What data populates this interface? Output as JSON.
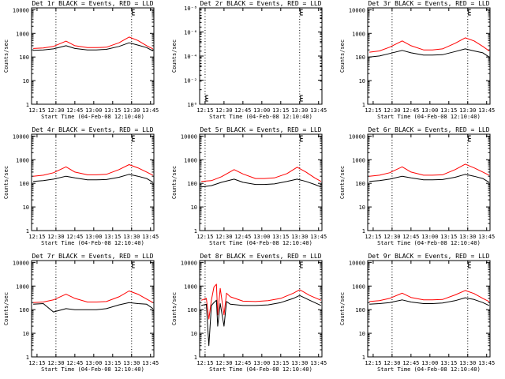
{
  "chart_data": [
    {
      "type": "line",
      "title": "Det 1r BLACK = Events, RED = LLD",
      "xlabel": "Start Time (04-Feb-08 12:10:40)",
      "ylabel": "Counts/sec",
      "x_ticks": [
        "12:15",
        "12:30",
        "12:45",
        "13:00",
        "13:15",
        "13:30",
        "13:45"
      ],
      "y_ticks": [
        "1",
        "10",
        "100",
        "1000",
        "10000"
      ],
      "ylim": [
        1,
        12000
      ],
      "y_scale": "log",
      "markers": [
        "12:30",
        "13:30"
      ],
      "series": [
        {
          "color": "#ff0000",
          "x": [
            "12:12",
            "12:20",
            "12:28",
            "12:38",
            "12:45",
            "12:55",
            "13:02",
            "13:10",
            "13:20",
            "13:28",
            "13:35",
            "13:42",
            "13:47"
          ],
          "y": [
            230,
            240,
            280,
            470,
            300,
            250,
            250,
            260,
            400,
            700,
            500,
            300,
            220
          ]
        },
        {
          "color": "#000000",
          "x": [
            "12:12",
            "12:20",
            "12:28",
            "12:38",
            "12:45",
            "12:55",
            "13:02",
            "13:10",
            "13:20",
            "13:28",
            "13:35",
            "13:42",
            "13:47"
          ],
          "y": [
            190,
            200,
            220,
            300,
            230,
            200,
            200,
            210,
            280,
            400,
            320,
            250,
            180
          ]
        }
      ]
    },
    {
      "type": "line",
      "title": "Det 2r BLACK = Events, RED = LLD",
      "xlabel": "Start Time (04-Feb-08 12:10:40)",
      "ylabel": "Counts/sec",
      "x_ticks": [
        "12:15",
        "12:30",
        "12:45",
        "13:00",
        "13:15",
        "13:30",
        "13:45"
      ],
      "y_ticks": [
        "10⁰",
        "10⁻²",
        "10⁻⁴",
        "10⁻⁶",
        "10⁻⁸"
      ],
      "ylim": [
        1,
        1e-08
      ],
      "y_scale": "log",
      "markers": [
        "12:15",
        "13:30"
      ],
      "series": []
    },
    {
      "type": "line",
      "title": "Det 3r BLACK = Events, RED = LLD",
      "xlabel": "Start Time (04-Feb-08 12:10:40)",
      "ylabel": "Counts/sec",
      "x_ticks": [
        "12:15",
        "12:30",
        "12:45",
        "13:00",
        "13:15",
        "13:30",
        "13:45"
      ],
      "y_ticks": [
        "1",
        "10",
        "100",
        "1000",
        "10000"
      ],
      "ylim": [
        1,
        12000
      ],
      "y_scale": "log",
      "markers": [
        "12:30",
        "13:30"
      ],
      "series": [
        {
          "color": "#ff0000",
          "x": [
            "12:12",
            "12:20",
            "12:28",
            "12:38",
            "12:45",
            "12:55",
            "13:02",
            "13:10",
            "13:20",
            "13:28",
            "13:35",
            "13:42",
            "13:47"
          ],
          "y": [
            160,
            180,
            260,
            480,
            300,
            200,
            200,
            220,
            380,
            650,
            480,
            280,
            180
          ]
        },
        {
          "color": "#000000",
          "x": [
            "12:12",
            "12:20",
            "12:28",
            "12:38",
            "12:45",
            "12:55",
            "13:02",
            "13:10",
            "13:20",
            "13:28",
            "13:35",
            "13:42",
            "13:47"
          ],
          "y": [
            100,
            110,
            140,
            190,
            150,
            120,
            120,
            125,
            170,
            220,
            180,
            150,
            100
          ]
        }
      ]
    },
    {
      "type": "line",
      "title": "Det 4r BLACK = Events, RED = LLD",
      "xlabel": "Start Time (04-Feb-08 12:10:40)",
      "ylabel": "Counts/sec",
      "x_ticks": [
        "12:15",
        "12:30",
        "12:45",
        "13:00",
        "13:15",
        "13:30",
        "13:45"
      ],
      "y_ticks": [
        "1",
        "10",
        "100",
        "1000",
        "10000"
      ],
      "ylim": [
        1,
        12000
      ],
      "y_scale": "log",
      "markers": [
        "12:30",
        "13:30"
      ],
      "series": [
        {
          "color": "#ff0000",
          "x": [
            "12:12",
            "12:20",
            "12:28",
            "12:38",
            "12:45",
            "12:55",
            "13:02",
            "13:10",
            "13:20",
            "13:28",
            "13:35",
            "13:42",
            "13:47"
          ],
          "y": [
            200,
            220,
            280,
            500,
            300,
            230,
            230,
            240,
            380,
            620,
            450,
            300,
            220
          ]
        },
        {
          "color": "#000000",
          "x": [
            "12:12",
            "12:20",
            "12:28",
            "12:38",
            "12:45",
            "12:55",
            "13:02",
            "13:10",
            "13:20",
            "13:28",
            "13:35",
            "13:42",
            "13:47"
          ],
          "y": [
            120,
            130,
            150,
            200,
            170,
            140,
            140,
            145,
            180,
            240,
            200,
            160,
            110
          ]
        }
      ]
    },
    {
      "type": "line",
      "title": "Det 5r BLACK = Events, RED = LLD",
      "xlabel": "Start Time (04-Feb-08 12:10:40)",
      "ylabel": "Counts/sec",
      "x_ticks": [
        "12:15",
        "12:30",
        "12:45",
        "13:00",
        "13:15",
        "13:30",
        "13:45"
      ],
      "y_ticks": [
        "1",
        "10",
        "100",
        "1000",
        "10000"
      ],
      "ylim": [
        1,
        12000
      ],
      "y_scale": "log",
      "markers": [
        "12:15",
        "13:30"
      ],
      "series": [
        {
          "color": "#ff0000",
          "x": [
            "12:12",
            "12:20",
            "12:28",
            "12:38",
            "12:45",
            "12:55",
            "13:02",
            "13:10",
            "13:20",
            "13:28",
            "13:35",
            "13:42",
            "13:47"
          ],
          "y": [
            120,
            130,
            190,
            380,
            250,
            160,
            160,
            170,
            260,
            480,
            300,
            170,
            120
          ]
        },
        {
          "color": "#000000",
          "x": [
            "12:12",
            "12:20",
            "12:28",
            "12:38",
            "12:45",
            "12:55",
            "13:02",
            "13:10",
            "13:20",
            "13:28",
            "13:35",
            "13:42",
            "13:47"
          ],
          "y": [
            70,
            80,
            110,
            150,
            110,
            90,
            90,
            95,
            120,
            150,
            120,
            90,
            70
          ]
        }
      ]
    },
    {
      "type": "line",
      "title": "Det 6r BLACK = Events, RED = LLD",
      "xlabel": "Start Time (04-Feb-08 12:10:40)",
      "ylabel": "Counts/sec",
      "x_ticks": [
        "12:15",
        "12:30",
        "12:45",
        "13:00",
        "13:15",
        "13:30",
        "13:45"
      ],
      "y_ticks": [
        "1",
        "10",
        "100",
        "1000",
        "10000"
      ],
      "ylim": [
        1,
        12000
      ],
      "y_scale": "log",
      "markers": [
        "12:30",
        "13:30"
      ],
      "series": [
        {
          "color": "#ff0000",
          "x": [
            "12:12",
            "12:20",
            "12:28",
            "12:38",
            "12:45",
            "12:55",
            "13:02",
            "13:10",
            "13:20",
            "13:28",
            "13:35",
            "13:42",
            "13:47"
          ],
          "y": [
            200,
            220,
            280,
            500,
            300,
            220,
            220,
            230,
            380,
            650,
            450,
            300,
            220
          ]
        },
        {
          "color": "#000000",
          "x": [
            "12:12",
            "12:20",
            "12:28",
            "12:38",
            "12:45",
            "12:55",
            "13:02",
            "13:10",
            "13:20",
            "13:28",
            "13:35",
            "13:42",
            "13:47"
          ],
          "y": [
            120,
            130,
            150,
            200,
            170,
            140,
            140,
            145,
            180,
            240,
            200,
            160,
            110
          ]
        }
      ]
    },
    {
      "type": "line",
      "title": "Det 7r BLACK = Events, RED = LLD",
      "xlabel": "Start Time (04-Feb-08 12:10:40)",
      "ylabel": "Counts/sec",
      "x_ticks": [
        "12:15",
        "12:30",
        "12:45",
        "13:00",
        "13:15",
        "13:30",
        "13:45"
      ],
      "y_ticks": [
        "1",
        "10",
        "100",
        "1000",
        "10000"
      ],
      "ylim": [
        1,
        12000
      ],
      "y_scale": "log",
      "markers": [
        "12:30",
        "13:30"
      ],
      "series": [
        {
          "color": "#ff0000",
          "x": [
            "12:12",
            "12:20",
            "12:28",
            "12:38",
            "12:45",
            "12:55",
            "13:02",
            "13:10",
            "13:20",
            "13:28",
            "13:35",
            "13:42",
            "13:47"
          ],
          "y": [
            200,
            210,
            260,
            450,
            300,
            210,
            210,
            220,
            350,
            620,
            450,
            280,
            200
          ]
        },
        {
          "color": "#000000",
          "x": [
            "12:12",
            "12:20",
            "12:28",
            "12:38",
            "12:45",
            "12:55",
            "13:02",
            "13:10",
            "13:20",
            "13:28",
            "13:35",
            "13:42",
            "13:47"
          ],
          "y": [
            170,
            180,
            80,
            110,
            100,
            100,
            100,
            110,
            160,
            200,
            180,
            170,
            110
          ]
        }
      ]
    },
    {
      "type": "line",
      "title": "Det 8r BLACK = Events, RED = LLD",
      "xlabel": "Start Time (04-Feb-08 12:10:40)",
      "ylabel": "Counts/sec",
      "x_ticks": [
        "12:15",
        "12:30",
        "12:45",
        "13:00",
        "13:15",
        "13:30",
        "13:45"
      ],
      "y_ticks": [
        "1",
        "10",
        "100",
        "1000",
        "10000"
      ],
      "ylim": [
        1,
        12000
      ],
      "y_scale": "log",
      "markers": [
        "12:15",
        "13:30"
      ],
      "series": [
        {
          "color": "#ff0000",
          "x": [
            "12:12",
            "12:16",
            "12:18",
            "12:20",
            "12:22",
            "12:24",
            "12:25",
            "12:27",
            "12:30",
            "12:32",
            "12:35",
            "12:45",
            "12:55",
            "13:05",
            "13:15",
            "13:25",
            "13:30",
            "13:38",
            "13:47"
          ],
          "y": [
            250,
            300,
            40,
            250,
            900,
            1200,
            60,
            800,
            60,
            500,
            350,
            230,
            220,
            240,
            300,
            500,
            700,
            400,
            250
          ]
        },
        {
          "color": "#000000",
          "x": [
            "12:12",
            "12:16",
            "12:18",
            "12:20",
            "12:22",
            "12:24",
            "12:25",
            "12:27",
            "12:30",
            "12:32",
            "12:35",
            "12:45",
            "12:55",
            "13:05",
            "13:15",
            "13:25",
            "13:30",
            "13:38",
            "13:47"
          ],
          "y": [
            150,
            170,
            3,
            150,
            200,
            250,
            20,
            180,
            20,
            220,
            170,
            150,
            150,
            160,
            200,
            300,
            400,
            250,
            150
          ]
        }
      ]
    },
    {
      "type": "line",
      "title": "Det 9r BLACK = Events, RED = LLD",
      "xlabel": "Start Time (04-Feb-08 12:10:40)",
      "ylabel": "Counts/sec",
      "x_ticks": [
        "12:15",
        "12:30",
        "12:45",
        "13:00",
        "13:15",
        "13:30",
        "13:45"
      ],
      "y_ticks": [
        "1",
        "10",
        "100",
        "1000",
        "10000"
      ],
      "ylim": [
        1,
        12000
      ],
      "y_scale": "log",
      "markers": [
        "12:30",
        "13:30"
      ],
      "series": [
        {
          "color": "#ff0000",
          "x": [
            "12:12",
            "12:20",
            "12:28",
            "12:38",
            "12:45",
            "12:55",
            "13:02",
            "13:10",
            "13:20",
            "13:28",
            "13:35",
            "13:42",
            "13:47"
          ],
          "y": [
            220,
            240,
            300,
            500,
            330,
            260,
            260,
            270,
            420,
            650,
            480,
            300,
            220
          ]
        },
        {
          "color": "#000000",
          "x": [
            "12:12",
            "12:20",
            "12:28",
            "12:38",
            "12:45",
            "12:55",
            "13:02",
            "13:10",
            "13:20",
            "13:28",
            "13:35",
            "13:42",
            "13:47"
          ],
          "y": [
            170,
            180,
            200,
            260,
            210,
            180,
            180,
            190,
            240,
            320,
            270,
            200,
            150
          ]
        }
      ]
    }
  ]
}
